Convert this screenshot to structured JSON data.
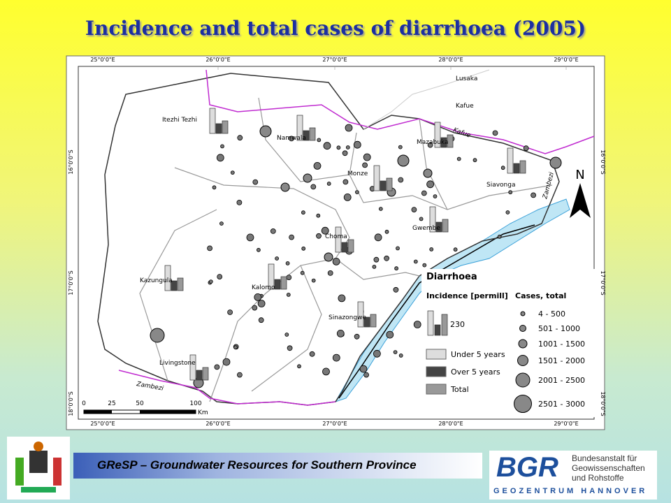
{
  "title": "Incidence and total cases of diarrhoea (2005)",
  "map": {
    "lon_labels": [
      "25°0'0\"E",
      "26°0'0\"E",
      "27°0'0\"E",
      "28°0'0\"E",
      "29°0'0\"E"
    ],
    "lat_labels": [
      "16°0'0\"S",
      "17°0'0\"S",
      "18°0'0\"S"
    ],
    "places": [
      "Lusaka",
      "Kafue",
      "Itezhi Tezhi",
      "Namwala",
      "Mazabuka",
      "Monze",
      "Siavonga",
      "Gwembe",
      "Choma",
      "Kazungula",
      "Kalomo",
      "Sinazongwe",
      "Livingstone"
    ],
    "rivers": [
      "Kafue",
      "Zambezi",
      "Zambezi"
    ],
    "north": "N",
    "scale": {
      "ticks": [
        0,
        25,
        50,
        100
      ],
      "unit": "Km"
    }
  },
  "legend": {
    "title": "Diarrhoea",
    "incidence_label": "Incidence [permill]",
    "cases_label": "Cases, total",
    "sample_value": "230",
    "bar_items": [
      "Under 5 years",
      "Over 5 years",
      "Total"
    ],
    "case_classes": [
      "4 - 500",
      "501 - 1000",
      "1001 - 1500",
      "1501 - 2000",
      "2001 - 2500",
      "2501 - 3000"
    ]
  },
  "footer": {
    "project": "GReSP – Groundwater Resources for Southern Province",
    "logo": "BGR",
    "org_lines": [
      "Bundesanstalt für",
      "Geowissenschaften",
      "und Rohstoffe"
    ],
    "sub": "GEOZENTRUM HANNOVER"
  }
}
